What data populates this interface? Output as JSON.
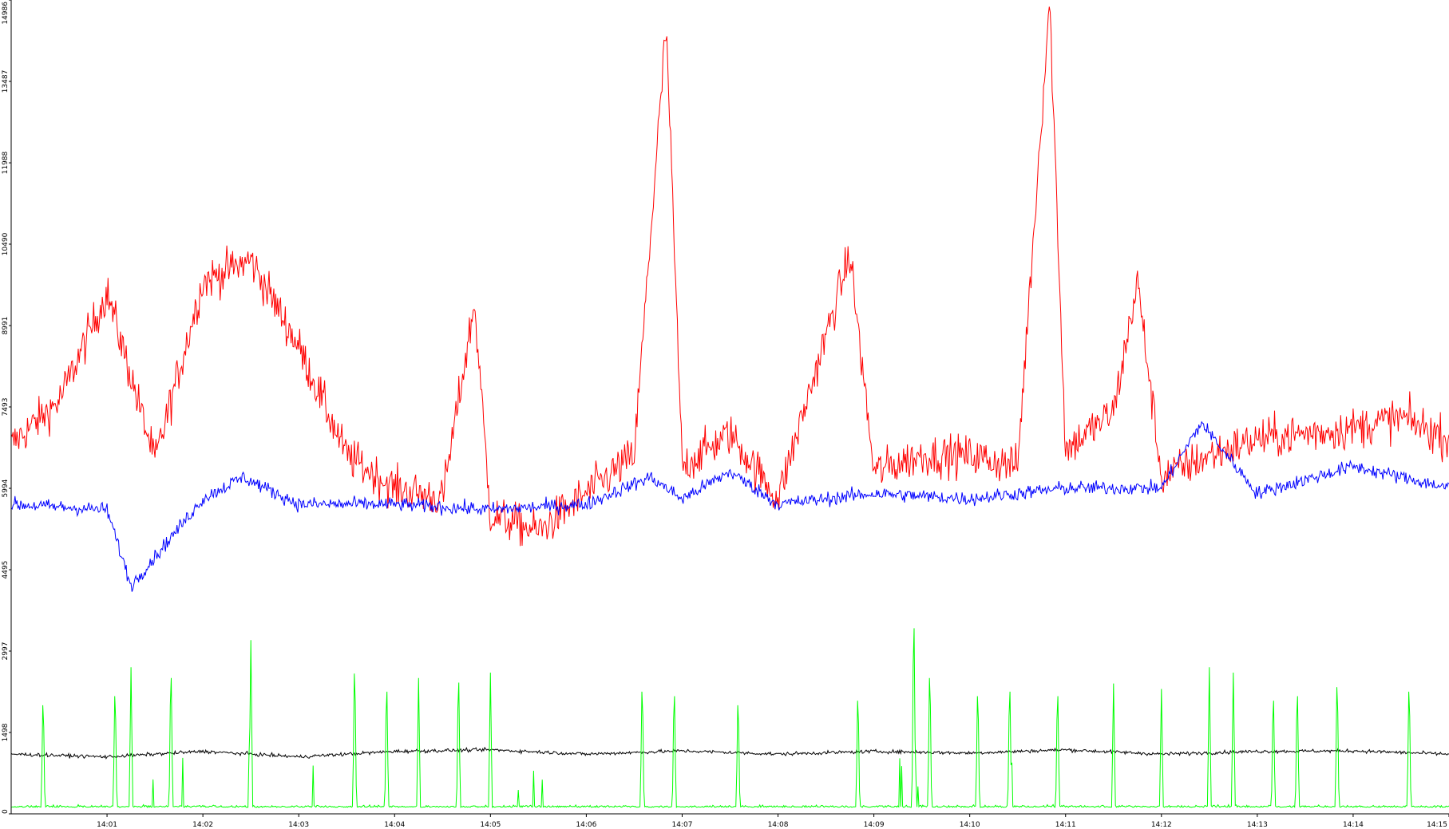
{
  "chart_data": {
    "type": "line",
    "title": "",
    "xlabel": "",
    "ylabel": "",
    "x_ticks": [
      "14:01",
      "14:02",
      "14:03",
      "14:04",
      "14:05",
      "14:06",
      "14:07",
      "14:08",
      "14:09",
      "14:10",
      "14:11",
      "14:12",
      "14:13",
      "14:14",
      "14:15"
    ],
    "x_range": [
      "14:00",
      "14:15"
    ],
    "y_ticks": [
      0,
      1498,
      2997,
      4495,
      5994,
      7493,
      8991,
      10490,
      11988,
      13487,
      14986
    ],
    "y_ticks_label": [
      "0",
      "1498",
      "2997",
      "4495",
      "5994",
      "7493",
      "8991",
      "10490",
      "11988",
      "13487",
      "14986"
    ],
    "ylim": [
      0,
      14986
    ],
    "grid": false,
    "series": [
      {
        "color": "#ff0000",
        "x": [
          "14:00",
          "14:00:30",
          "14:01",
          "14:01:30",
          "14:02",
          "14:02:30",
          "14:03",
          "14:03:30",
          "14:04",
          "14:04:30",
          "14:04:50",
          "14:05",
          "14:05:30",
          "14:06",
          "14:06:30",
          "14:06:50",
          "14:07",
          "14:07:30",
          "14:08",
          "14:08:30",
          "14:08:45",
          "14:09",
          "14:09:30",
          "14:10",
          "14:10:30",
          "14:10:50",
          "14:11",
          "14:11:30",
          "14:11:45",
          "14:12",
          "14:12:30",
          "14:13",
          "14:13:30",
          "14:14",
          "14:14:30",
          "14:15"
        ],
        "values": [
          6800,
          7600,
          9600,
          6500,
          9800,
          10200,
          8600,
          6600,
          6000,
          5800,
          9400,
          5500,
          5200,
          5900,
          6600,
          14500,
          6400,
          7000,
          5800,
          8800,
          10300,
          6300,
          6600,
          6600,
          6400,
          14986,
          6700,
          7400,
          9800,
          6200,
          6600,
          6900,
          7000,
          7100,
          7300,
          6900
        ]
      },
      {
        "color": "#0000ff",
        "x": [
          "14:00",
          "14:01",
          "14:01:15",
          "14:02",
          "14:02:25",
          "14:03",
          "14:04",
          "14:05",
          "14:06",
          "14:06:40",
          "14:07",
          "14:07:30",
          "14:08",
          "14:09",
          "14:10",
          "14:11",
          "14:12",
          "14:12:25",
          "14:13",
          "14:14",
          "14:15"
        ],
        "values": [
          5700,
          5600,
          4200,
          5800,
          6200,
          5700,
          5700,
          5600,
          5700,
          6200,
          5800,
          6300,
          5700,
          5900,
          5800,
          6000,
          6000,
          7200,
          5900,
          6400,
          6000
        ]
      },
      {
        "color": "#000000",
        "x": [
          "14:00",
          "14:01",
          "14:02",
          "14:03",
          "14:04",
          "14:05",
          "14:06",
          "14:07",
          "14:08",
          "14:09",
          "14:10",
          "14:11",
          "14:12",
          "14:13",
          "14:14",
          "14:15"
        ],
        "values": [
          1100,
          1050,
          1150,
          1050,
          1150,
          1180,
          1100,
          1160,
          1100,
          1150,
          1120,
          1180,
          1100,
          1150,
          1160,
          1100
        ]
      },
      {
        "color": "#00ff00",
        "x": [
          "14:00:20",
          "14:01:05",
          "14:01:15",
          "14:01:40",
          "14:02:30",
          "14:03:35",
          "14:03:55",
          "14:04:15",
          "14:04:40",
          "14:05",
          "14:06:35",
          "14:06:55",
          "14:07:35",
          "14:08:50",
          "14:09:25",
          "14:09:35",
          "14:10:05",
          "14:10:25",
          "14:10:55",
          "14:11:30",
          "14:12",
          "14:12:30",
          "14:12:45",
          "14:13:10",
          "14:13:25",
          "14:13:50",
          "14:14:35"
        ],
        "values": [
          2400,
          2600,
          2700,
          3000,
          3200,
          3100,
          2700,
          2500,
          2900,
          2600,
          2700,
          2600,
          2400,
          2500,
          4100,
          3000,
          2600,
          2700,
          2600,
          2400,
          2300,
          2700,
          2600,
          2500,
          2600,
          2800,
          2700
        ]
      }
    ]
  }
}
